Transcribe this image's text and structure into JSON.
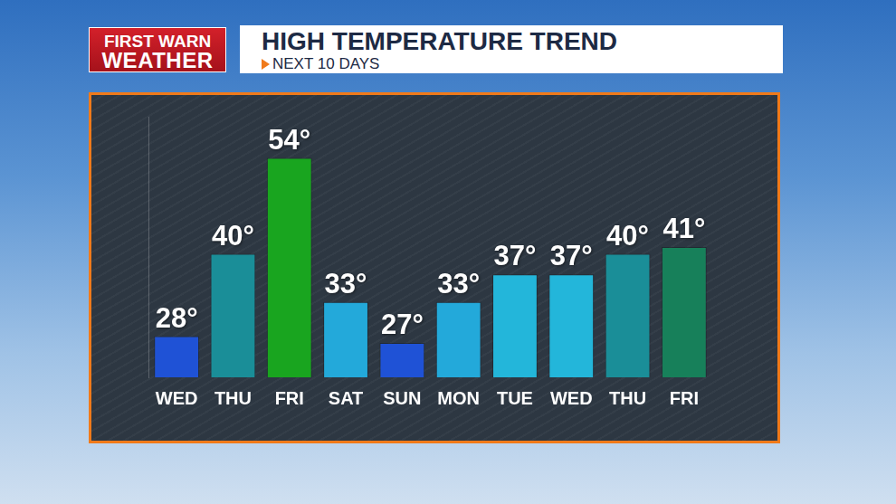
{
  "header": {
    "logo": [
      "FIRST WARN",
      "WEATHER"
    ]
  },
  "chart_data": {
    "type": "bar",
    "title": "HIGH TEMPERATURE TREND",
    "subtitle": "NEXT 10 DAYS",
    "categories": [
      "WED",
      "THU",
      "FRI",
      "SAT",
      "SUN",
      "MON",
      "TUE",
      "WED",
      "THU",
      "FRI"
    ],
    "values": [
      28,
      40,
      54,
      33,
      27,
      33,
      37,
      37,
      40,
      41
    ],
    "value_labels": [
      "28°",
      "40°",
      "54°",
      "33°",
      "27°",
      "33°",
      "37°",
      "37°",
      "40°",
      "41°"
    ],
    "colors": [
      "#1f52d6",
      "#1a8e98",
      "#19a51f",
      "#23a9da",
      "#1f52d6",
      "#23a9da",
      "#23b6da",
      "#23b6da",
      "#1a8e98",
      "#17805a"
    ],
    "ylim": [
      22,
      60
    ],
    "data_labels": true,
    "tick_labels": "x",
    "grid": false
  }
}
